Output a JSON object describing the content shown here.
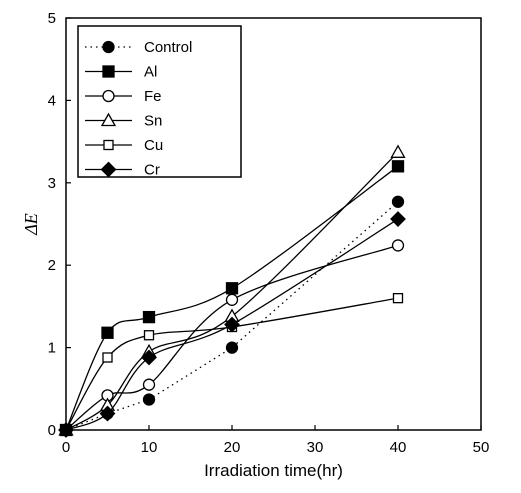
{
  "chart_data": {
    "type": "line",
    "title": "",
    "xlabel": "Irradiation time(hr)",
    "ylabel": "ΔE",
    "xlim": [
      0,
      50
    ],
    "ylim": [
      0,
      5
    ],
    "xticks": [
      "0",
      "10",
      "20",
      "30",
      "40",
      "50"
    ],
    "yticks": [
      "0",
      "1",
      "2",
      "3",
      "4",
      "5"
    ],
    "grid": false,
    "legend_position": "top-left",
    "series": [
      {
        "name": "Control",
        "marker": "filled-circle",
        "line": "dotted",
        "points": [
          [
            0,
            0
          ],
          [
            5,
            0.2
          ],
          [
            10,
            0.37
          ],
          [
            20,
            1.0
          ],
          [
            40,
            2.77
          ]
        ]
      },
      {
        "name": "Al",
        "marker": "filled-square",
        "line": "solid",
        "points": [
          [
            0,
            0
          ],
          [
            5,
            1.18
          ],
          [
            10,
            1.37
          ],
          [
            20,
            1.72
          ],
          [
            40,
            3.2
          ]
        ]
      },
      {
        "name": "Fe",
        "marker": "open-circle",
        "line": "solid",
        "points": [
          [
            0,
            0
          ],
          [
            5,
            0.42
          ],
          [
            10,
            0.55
          ],
          [
            20,
            1.58
          ],
          [
            40,
            2.24
          ]
        ]
      },
      {
        "name": "Sn",
        "marker": "open-triangle",
        "line": "solid",
        "points": [
          [
            0,
            0
          ],
          [
            5,
            0.3
          ],
          [
            10,
            0.95
          ],
          [
            20,
            1.38
          ],
          [
            40,
            3.37
          ]
        ]
      },
      {
        "name": "Cu",
        "marker": "open-square",
        "line": "solid",
        "points": [
          [
            0,
            0
          ],
          [
            5,
            0.88
          ],
          [
            10,
            1.15
          ],
          [
            20,
            1.25
          ],
          [
            40,
            1.6
          ]
        ]
      },
      {
        "name": "Cr",
        "marker": "filled-diamond",
        "line": "solid",
        "points": [
          [
            0,
            0
          ],
          [
            5,
            0.2
          ],
          [
            10,
            0.88
          ],
          [
            20,
            1.28
          ],
          [
            40,
            2.56
          ]
        ]
      }
    ]
  }
}
